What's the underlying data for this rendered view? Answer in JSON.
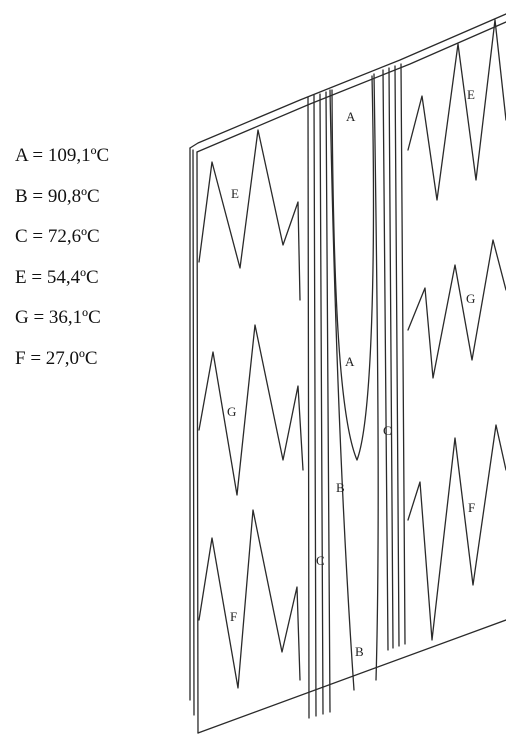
{
  "legend": [
    {
      "key": "A",
      "text": "A = 109,1ºC"
    },
    {
      "key": "B",
      "text": "B = 90,8ºC"
    },
    {
      "key": "C",
      "text": "C = 72,6ºC"
    },
    {
      "key": "E",
      "text": "E = 54,4ºC"
    },
    {
      "key": "G",
      "text": "G = 36,1ºC"
    },
    {
      "key": "F",
      "text": "F = 27,0ºC"
    }
  ],
  "zone_labels": {
    "a_top": "A",
    "a_mid": "A",
    "b_mid": "B",
    "b_bottom": "B",
    "c_left": "C",
    "c_right": "C",
    "e_left": "E",
    "e_right": "E",
    "g_left": "G",
    "g_right": "G",
    "f_left": "F",
    "f_right": "F"
  },
  "colors": {
    "line": "#2a2a2a",
    "background": "#ffffff"
  }
}
